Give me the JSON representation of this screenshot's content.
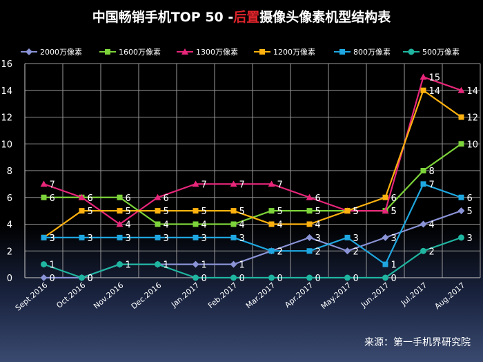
{
  "title": {
    "part1": "中国畅销手机TOP 50 -",
    "highlight": "后置",
    "part2": "摄像头像素机型结构表"
  },
  "source": "来源：第一手机界研究院",
  "chart_data": {
    "type": "line",
    "categories": [
      "Sept.2016",
      "Oct.2016",
      "Nov.2016",
      "Dec.2016",
      "Jan.2017",
      "Feb.2017",
      "Mar.2017",
      "Apr.2017",
      "May.2017",
      "Jun.2017",
      "Jul.2017",
      "Aug.2017"
    ],
    "ylim": [
      0,
      16
    ],
    "yticks": [
      "0",
      "2",
      "4",
      "6",
      "8",
      "10",
      "12",
      "14",
      "16"
    ],
    "grid": true,
    "legend_position": "top",
    "series": [
      {
        "name": "2000万像素",
        "color": "#8a93d6",
        "marker": "diamond",
        "values": [
          0,
          0,
          1,
          1,
          1,
          1,
          2,
          3,
          2,
          3,
          4,
          5
        ],
        "labels": [
          "0",
          "0",
          "1",
          "1",
          "1",
          "1",
          "2",
          "3",
          "2",
          "3",
          "4",
          "5"
        ]
      },
      {
        "name": "1600万像素",
        "color": "#7dd33a",
        "marker": "square",
        "values": [
          6,
          6,
          6,
          4,
          4,
          4,
          5,
          5,
          5,
          5,
          8,
          10
        ],
        "labels": [
          "6",
          "6",
          "6",
          "4",
          "4",
          "4",
          "5",
          "5",
          "5",
          "5",
          "8",
          "10"
        ]
      },
      {
        "name": "1300万像素",
        "color": "#e8267a",
        "marker": "triangle",
        "values": [
          7,
          6,
          4,
          6,
          7,
          7,
          7,
          6,
          5,
          5,
          15,
          14
        ],
        "labels": [
          "7",
          "6",
          "4",
          "6",
          "7",
          "7",
          "7",
          "6",
          "5",
          "5",
          "15",
          "14"
        ]
      },
      {
        "name": "1200万像素",
        "color": "#ffb20f",
        "marker": "square",
        "values": [
          3,
          5,
          5,
          5,
          5,
          5,
          4,
          4,
          5,
          6,
          14,
          12
        ],
        "labels": [
          "3",
          "5",
          "5",
          "5",
          "5",
          "5",
          "4",
          "4",
          "5",
          "6",
          "14",
          "12"
        ]
      },
      {
        "name": "800万像素",
        "color": "#1ea7e0",
        "marker": "square",
        "values": [
          3,
          3,
          3,
          3,
          3,
          3,
          2,
          2,
          3,
          1,
          7,
          6
        ],
        "labels": [
          "3",
          "3",
          "3",
          "3",
          "3",
          "3",
          "2",
          "2",
          "3",
          "1",
          "7",
          "6"
        ]
      },
      {
        "name": "500万像素",
        "color": "#1fb5a0",
        "marker": "circle",
        "values": [
          1,
          0,
          1,
          1,
          0,
          0,
          0,
          0,
          0,
          0,
          2,
          3
        ],
        "labels": [
          "1",
          "0",
          "1",
          "1",
          "0",
          "0",
          "0",
          "0",
          "0",
          "0",
          "2",
          "3"
        ]
      }
    ]
  }
}
